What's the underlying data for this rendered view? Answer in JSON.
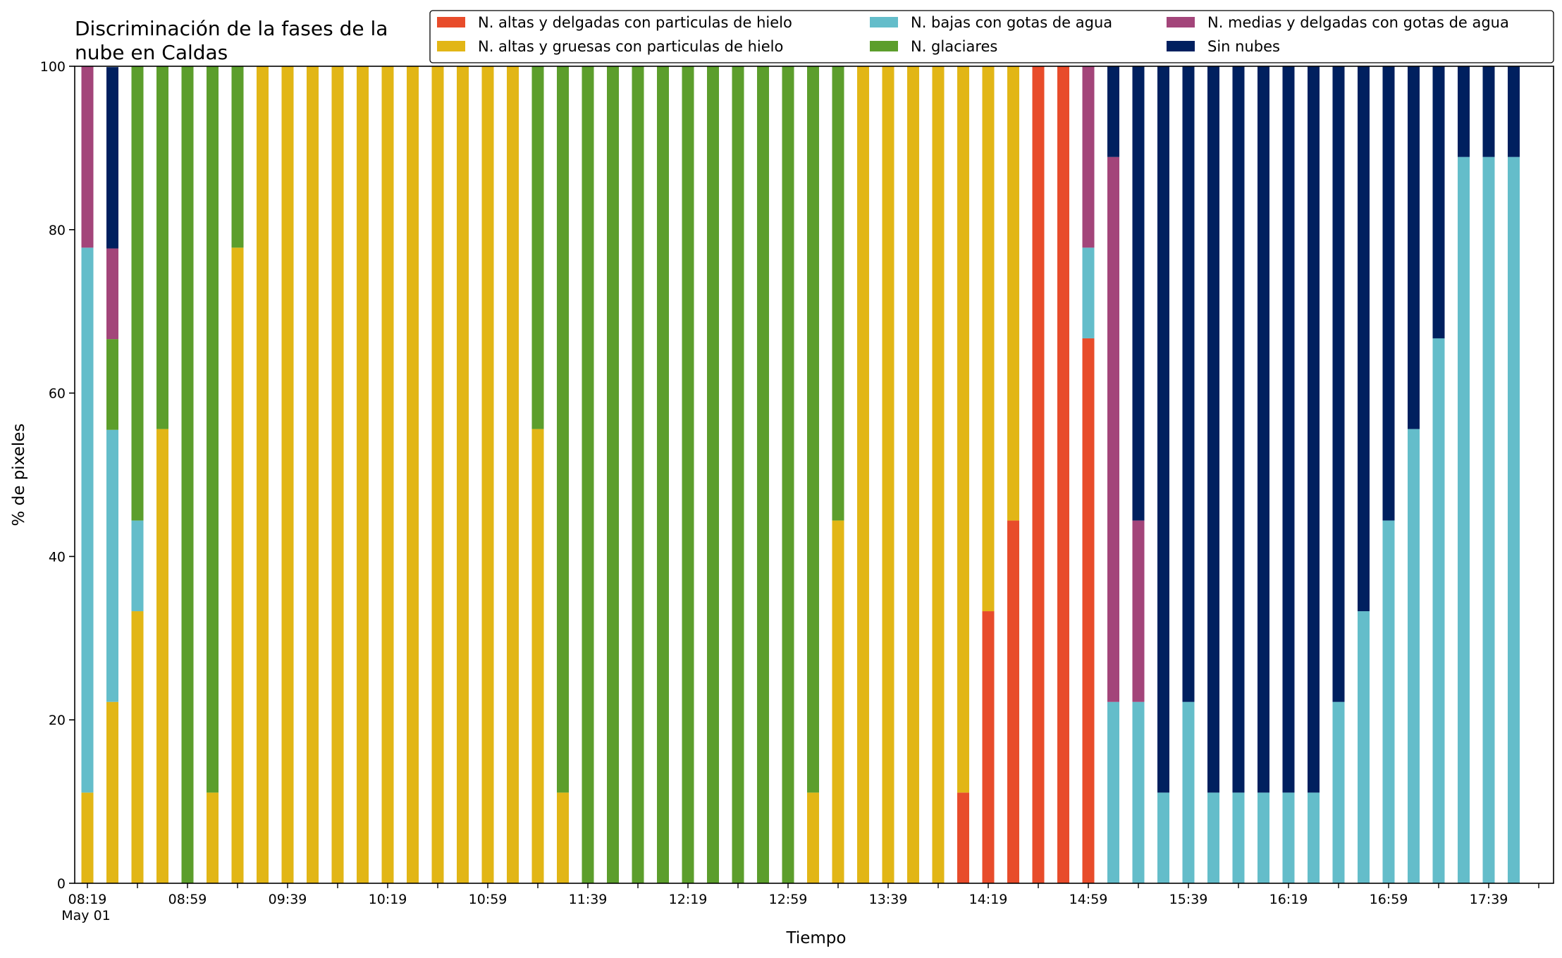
{
  "chart_data": {
    "type": "bar",
    "stacked": true,
    "title_lines": [
      "Discriminación de la fases de la",
      "nube en Caldas"
    ],
    "xlabel": "Tiempo",
    "ylabel": "% de pixeles",
    "ylim": [
      0,
      100
    ],
    "y_ticks": [
      "0",
      "20",
      "40",
      "60",
      "80",
      "100"
    ],
    "x_tick_labels": [
      "08:19",
      "08:59",
      "09:39",
      "10:19",
      "10:59",
      "11:39",
      "12:19",
      "12:59",
      "13:39",
      "14:19",
      "14:59",
      "15:39",
      "16:19",
      "16:59",
      "17:39"
    ],
    "x_date_label": "May 01",
    "grid": false,
    "legend_placement": "top-right",
    "categories": [
      "08:19",
      "08:29",
      "08:39",
      "08:49",
      "08:59",
      "09:09",
      "09:19",
      "09:29",
      "09:39",
      "09:49",
      "09:59",
      "10:09",
      "10:19",
      "10:29",
      "10:39",
      "10:49",
      "10:59",
      "11:09",
      "11:19",
      "11:29",
      "11:39",
      "11:49",
      "11:59",
      "12:09",
      "12:19",
      "12:29",
      "12:39",
      "12:49",
      "12:59",
      "13:09",
      "13:19",
      "13:29",
      "13:39",
      "13:49",
      "13:59",
      "14:09",
      "14:19",
      "14:29",
      "14:39",
      "14:49",
      "14:59",
      "15:09",
      "15:19",
      "15:29",
      "15:39",
      "15:49",
      "15:59",
      "16:09",
      "16:19",
      "16:29",
      "16:39",
      "16:49",
      "16:59",
      "17:09",
      "17:19",
      "17:29",
      "17:39",
      "17:49"
    ],
    "series": [
      {
        "name": "N. altas y delgadas con particulas de hielo",
        "color": "#e84c2b",
        "values": [
          0,
          0,
          0,
          0,
          0,
          0,
          0,
          0,
          0,
          0,
          0,
          0,
          0,
          0,
          0,
          0,
          0,
          0,
          0,
          0,
          0,
          0,
          0,
          0,
          0,
          0,
          0,
          0,
          0,
          0,
          0,
          0,
          0,
          0,
          0,
          11.1,
          33.3,
          44.4,
          100,
          100,
          66.7,
          0,
          0,
          0,
          0,
          0,
          0,
          0,
          0,
          0,
          0,
          0,
          0,
          0,
          0,
          0,
          0,
          0
        ]
      },
      {
        "name": "N. altas y gruesas con particulas de hielo",
        "color": "#e2b616",
        "values": [
          11.1,
          22.2,
          33.3,
          55.6,
          0,
          11.1,
          77.8,
          100,
          100,
          100,
          100,
          100,
          100,
          100,
          100,
          100,
          100,
          100,
          55.6,
          11.1,
          0,
          0,
          0,
          0,
          0,
          0,
          0,
          0,
          0,
          11.1,
          44.4,
          100,
          100,
          100,
          100,
          88.9,
          66.7,
          55.6,
          0,
          0,
          0,
          0,
          0,
          0,
          0,
          0,
          0,
          0,
          0,
          0,
          0,
          0,
          0,
          0,
          0,
          0,
          0,
          0
        ]
      },
      {
        "name": "N. bajas con gotas de agua",
        "color": "#64bdca",
        "values": [
          66.7,
          33.3,
          11.1,
          0,
          0,
          0,
          0,
          0,
          0,
          0,
          0,
          0,
          0,
          0,
          0,
          0,
          0,
          0,
          0,
          0,
          0,
          0,
          0,
          0,
          0,
          0,
          0,
          0,
          0,
          0,
          0,
          0,
          0,
          0,
          0,
          0,
          0,
          0,
          0,
          0,
          11.1,
          22.2,
          22.2,
          11.1,
          22.2,
          11.1,
          11.1,
          11.1,
          11.1,
          11.1,
          22.2,
          33.3,
          44.4,
          55.6,
          66.7,
          88.9,
          88.9,
          88.9
        ]
      },
      {
        "name": "N. glaciares",
        "color": "#5c9e2c",
        "values": [
          0,
          11.1,
          55.6,
          44.4,
          100,
          88.9,
          22.2,
          0,
          0,
          0,
          0,
          0,
          0,
          0,
          0,
          0,
          0,
          0,
          44.4,
          88.9,
          100,
          100,
          100,
          100,
          100,
          100,
          100,
          100,
          100,
          88.9,
          55.6,
          0,
          0,
          0,
          0,
          0,
          0,
          0,
          0,
          0,
          0,
          0,
          0,
          0,
          0,
          0,
          0,
          0,
          0,
          0,
          0,
          0,
          0,
          0,
          0,
          0,
          0,
          0
        ]
      },
      {
        "name": "N. medias y delgadas con gotas de agua",
        "color": "#a3457a",
        "values": [
          22.2,
          11.1,
          0,
          0,
          0,
          0,
          0,
          0,
          0,
          0,
          0,
          0,
          0,
          0,
          0,
          0,
          0,
          0,
          0,
          0,
          0,
          0,
          0,
          0,
          0,
          0,
          0,
          0,
          0,
          0,
          0,
          0,
          0,
          0,
          0,
          0,
          0,
          0,
          0,
          0,
          22.2,
          66.7,
          22.2,
          0,
          0,
          0,
          0,
          0,
          0,
          0,
          0,
          0,
          0,
          0,
          0,
          0,
          0,
          0
        ]
      },
      {
        "name": "Sin nubes",
        "color": "#00205f",
        "values": [
          0,
          22.2,
          0,
          0,
          0,
          0,
          0,
          0,
          0,
          0,
          0,
          0,
          0,
          0,
          0,
          0,
          0,
          0,
          0,
          0,
          0,
          0,
          0,
          0,
          0,
          0,
          0,
          0,
          0,
          0,
          0,
          0,
          0,
          0,
          0,
          0,
          0,
          0,
          0,
          0,
          0,
          11.1,
          55.6,
          88.9,
          77.8,
          88.9,
          88.9,
          88.9,
          88.9,
          88.9,
          77.8,
          66.7,
          55.6,
          44.4,
          33.3,
          11.1,
          11.1,
          11.1
        ]
      }
    ]
  }
}
